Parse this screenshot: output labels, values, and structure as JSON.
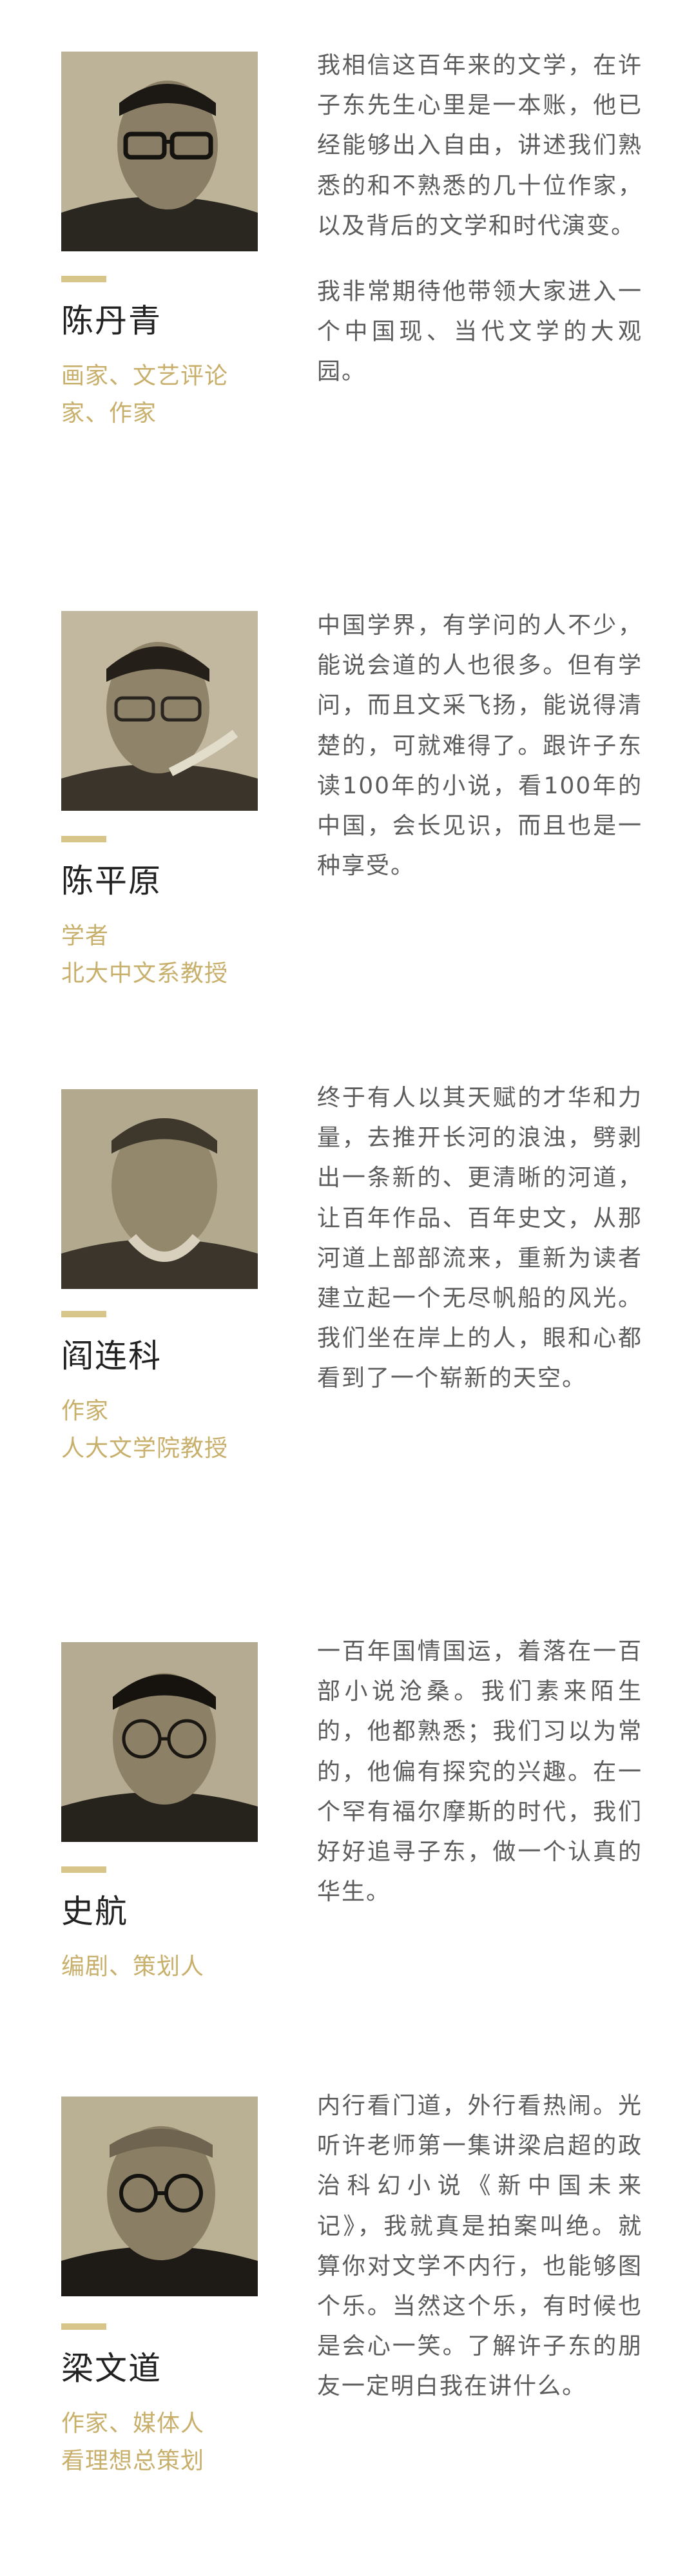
{
  "entries": [
    {
      "name": "陈丹青",
      "roles": [
        "画家、文艺评论家、作家"
      ],
      "paragraphs": [
        "我相信这百年来的文学，在许子东先生心里是一本账，他已经能够出入自由，讲述我们熟悉的和不熟悉的几十位作家，以及背后的文学和时代演变。",
        "我非常期待他带领大家进入一个中国现、当代文学的大观园。"
      ]
    },
    {
      "name": "陈平原",
      "roles": [
        "学者",
        "北大中文系教授"
      ],
      "paragraphs": [
        "中国学界，有学问的人不少，能说会道的人也很多。但有学问，而且文采飞扬，能说得清楚的，可就难得了。跟许子东读100年的小说，看100年的中国，会长见识，而且也是一种享受。"
      ]
    },
    {
      "name": "阎连科",
      "roles": [
        "作家",
        "人大文学院教授"
      ],
      "paragraphs": [
        "终于有人以其天赋的才华和力量，去推开长河的浪浊，劈剥出一条新的、更清晰的河道，让百年作品、百年史文，从那河道上部部流来，重新为读者建立起一个无尽帆船的风光。我们坐在岸上的人，眼和心都看到了一个崭新的天空。"
      ]
    },
    {
      "name": "史航",
      "roles": [
        "编剧、策划人"
      ],
      "paragraphs": [
        "一百年国情国运，着落在一百部小说沧桑。我们素来陌生的，他都熟悉；我们习以为常的，他偏有探究的兴趣。在一个罕有福尔摩斯的时代，我们好好追寻子东，做一个认真的华生。"
      ]
    },
    {
      "name": "梁文道",
      "roles": [
        "作家、媒体人",
        "看理想总策划"
      ],
      "paragraphs": [
        "内行看门道，外行看热闹。光听许老师第一集讲梁启超的政治科幻小说《新中国未来记》，我就真是拍案叫绝。就算你对文学不内行，也能够图个乐。当然这个乐，有时候也是会心一笑。了解许子东的朋友一定明白我在讲什么。"
      ]
    }
  ],
  "colors": {
    "accent": "#d8c58a",
    "role_text": "#c8b06c",
    "body_text": "#5c5c5c",
    "name_text": "#222222"
  }
}
